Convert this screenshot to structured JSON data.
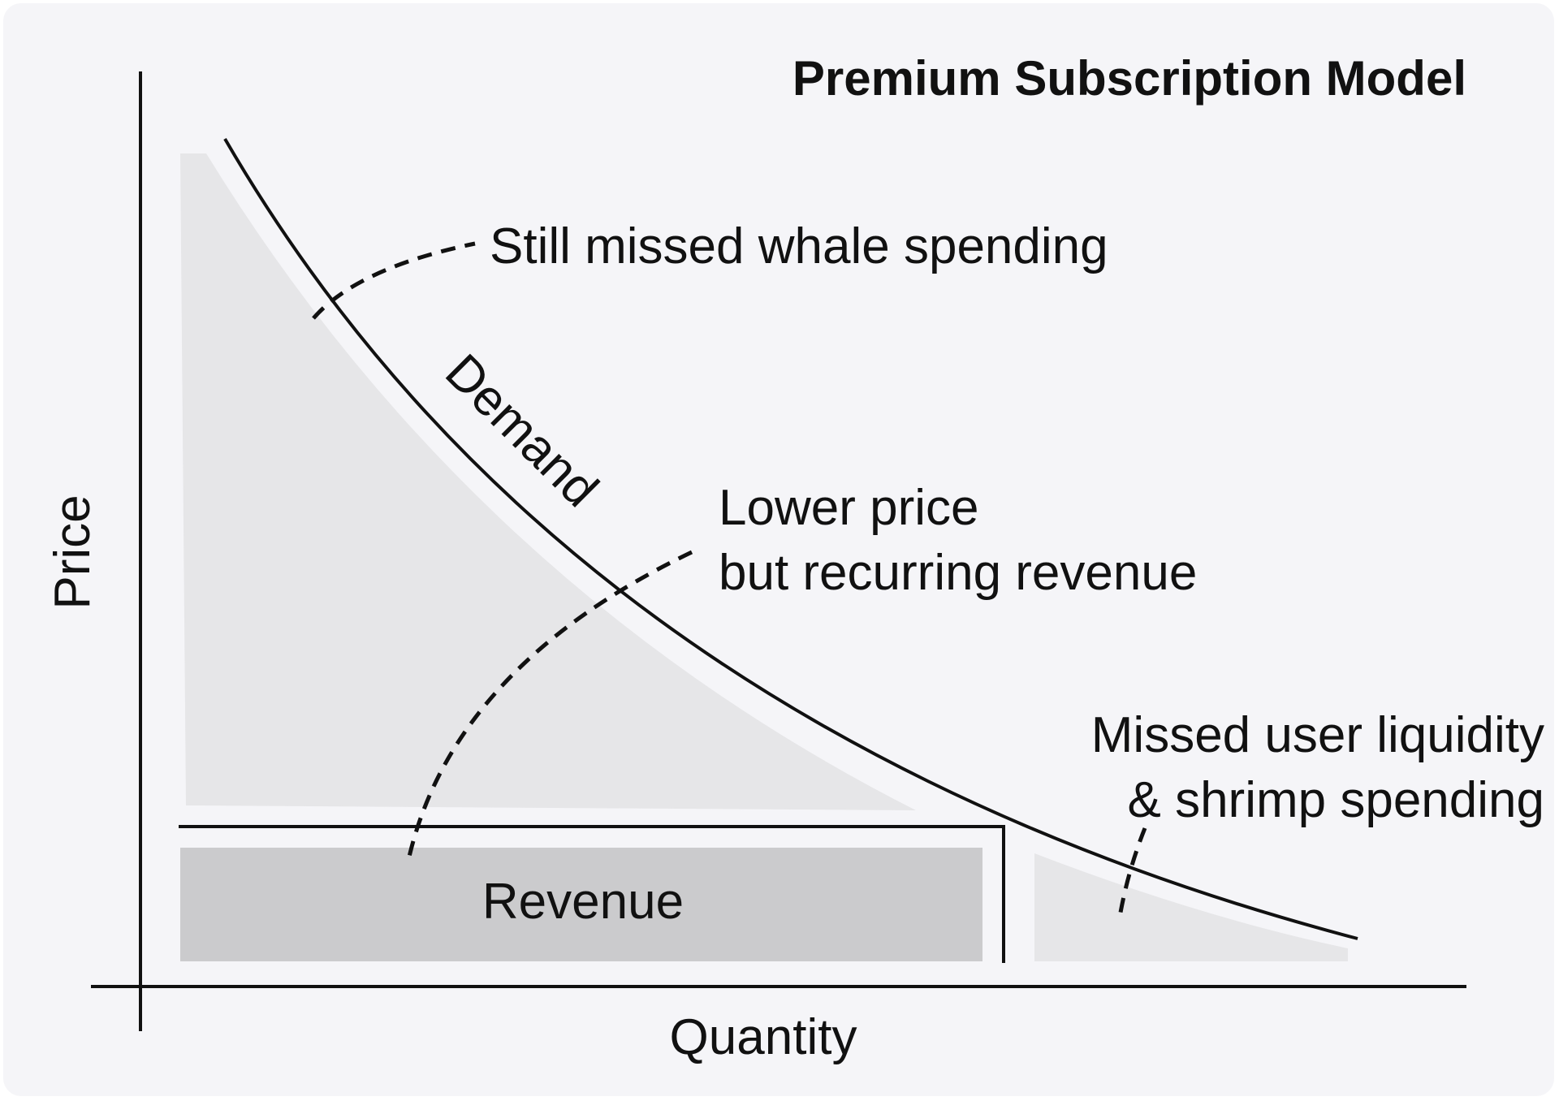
{
  "diagram": {
    "title": "Premium Subscription Model",
    "x_axis_label": "Quantity",
    "y_axis_label": "Price",
    "curve_label": "Demand",
    "revenue_label": "Revenue",
    "annotations": {
      "whale": "Still missed whale spending",
      "lower_price_line1": "Lower price",
      "lower_price_line2": "but recurring revenue",
      "missed_line1": "Missed user liquidity",
      "missed_line2": "& shrimp spending"
    },
    "colors": {
      "background": "#f5f5f8",
      "line": "#111111",
      "surplus_fill": "#e6e6e8",
      "revenue_fill": "#cbcbcd"
    }
  }
}
